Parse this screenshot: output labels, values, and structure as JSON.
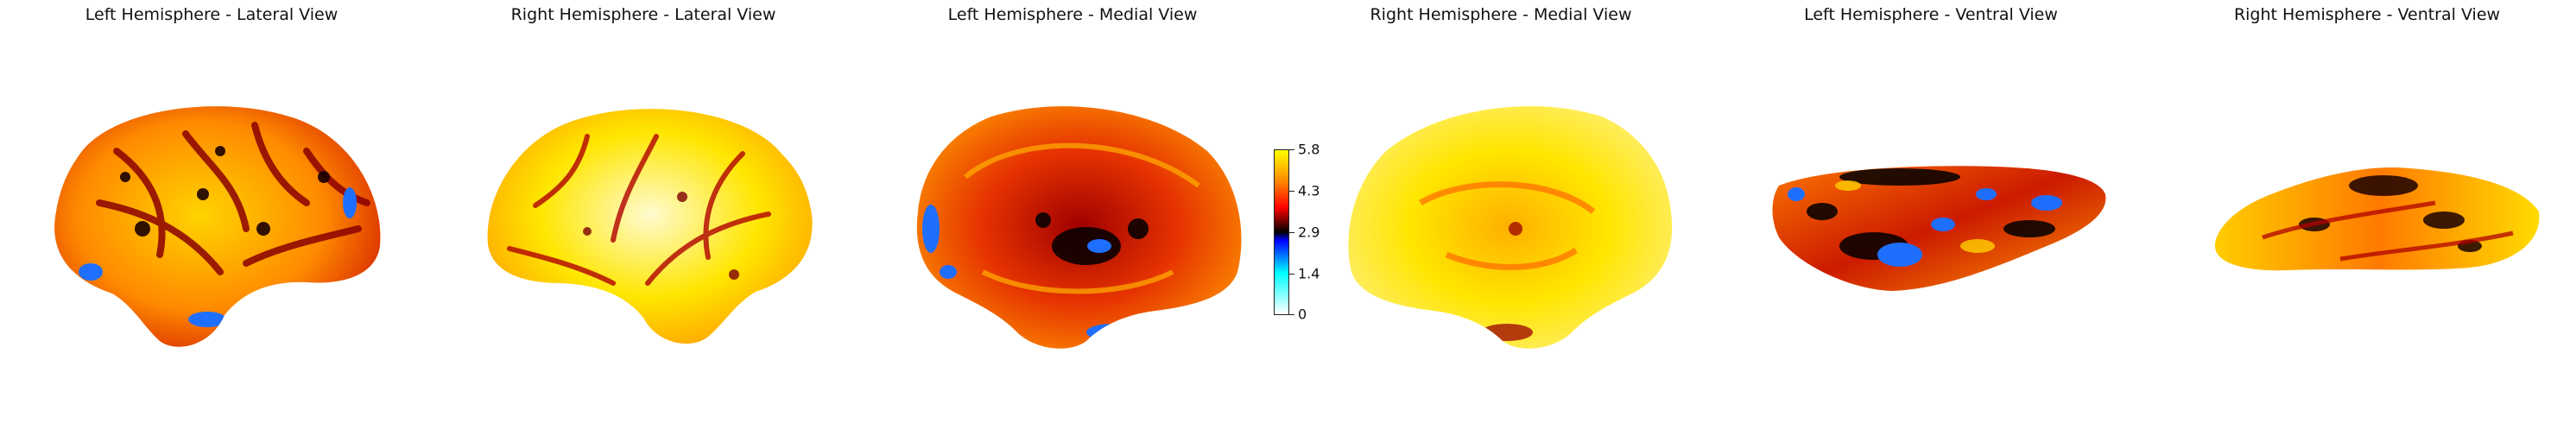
{
  "panels": [
    {
      "title": "Left Hemisphere - Lateral View"
    },
    {
      "title": "Right Hemisphere - Lateral View"
    },
    {
      "title": "Left Hemisphere - Medial View"
    },
    {
      "title": "Right Hemisphere - Medial View"
    },
    {
      "title": "Left Hemisphere - Ventral View"
    },
    {
      "title": "Right Hemisphere - Ventral View"
    }
  ],
  "colorbar": {
    "ticks": [
      "5.8",
      "4.3",
      "2.9",
      "1.4",
      "0"
    ],
    "colormap": [
      "#ffffff",
      "#00ffff",
      "#0000ff",
      "#000000",
      "#ff0000",
      "#ff8000",
      "#ffff00"
    ]
  }
}
